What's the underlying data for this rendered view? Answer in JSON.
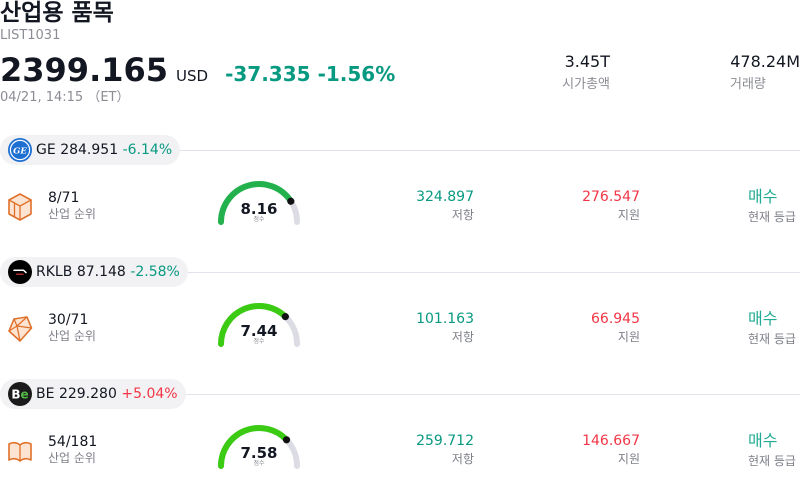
{
  "header": {
    "title": "산업용 품목",
    "symbol": "LIST1031",
    "price": "2399.165",
    "currency": "USD",
    "change": "-37.335",
    "change_pct": "-1.56%",
    "timestamp": "04/21, 14:15 （ET）",
    "market_cap": {
      "value": "3.45T",
      "label": "시가총액"
    },
    "volume": {
      "value": "478.24M",
      "label": "거래량"
    }
  },
  "colors": {
    "down": "#089981",
    "up": "#f23645",
    "rating": "#22ab94",
    "gauge_track": "#dcdce4",
    "gauge_marker": "#111111"
  },
  "holdings": [
    {
      "ticker": "GE",
      "price": "284.951",
      "change_pct": "-6.14%",
      "change_color": "#089981",
      "logo": {
        "icon": "ge-logo-icon",
        "text": "GE",
        "bg": "#1f6fd2"
      },
      "rank_icon": "cube-icon",
      "rank": "8/71",
      "rank_label": "산업 순위",
      "score": "8.16",
      "score_label": "점수",
      "gauge_level": 0.816,
      "gauge_color": "#22b14c",
      "resistance": "324.897",
      "resistance_label": "저항",
      "support": "276.547",
      "support_label": "지원",
      "rating": "매수",
      "rating_label": "현재 등급"
    },
    {
      "ticker": "RKLB",
      "price": "87.148",
      "change_pct": "-2.58%",
      "change_color": "#089981",
      "logo": {
        "icon": "rklb-logo-icon",
        "bg": "#000000"
      },
      "rank_icon": "gem-icon",
      "rank": "30/71",
      "rank_label": "산업 순위",
      "score": "7.44",
      "score_label": "점수",
      "gauge_level": 0.744,
      "gauge_color": "#3acb12",
      "resistance": "101.163",
      "resistance_label": "저항",
      "support": "66.945",
      "support_label": "지원",
      "rating": "매수",
      "rating_label": "현재 등급"
    },
    {
      "ticker": "BE",
      "price": "229.280",
      "change_pct": "+5.04%",
      "change_color": "#f23645",
      "logo": {
        "icon": "be-logo-icon",
        "text": "B",
        "accent": "e",
        "bg": "#1b1b1b",
        "accent_color": "#52b947"
      },
      "rank_icon": "book-icon",
      "rank": "54/181",
      "rank_label": "산업 순위",
      "score": "7.58",
      "score_label": "점수",
      "gauge_level": 0.758,
      "gauge_color": "#3acb12",
      "resistance": "259.712",
      "resistance_label": "저항",
      "support": "146.667",
      "support_label": "지원",
      "rating": "매수",
      "rating_label": "현재 등급"
    }
  ]
}
